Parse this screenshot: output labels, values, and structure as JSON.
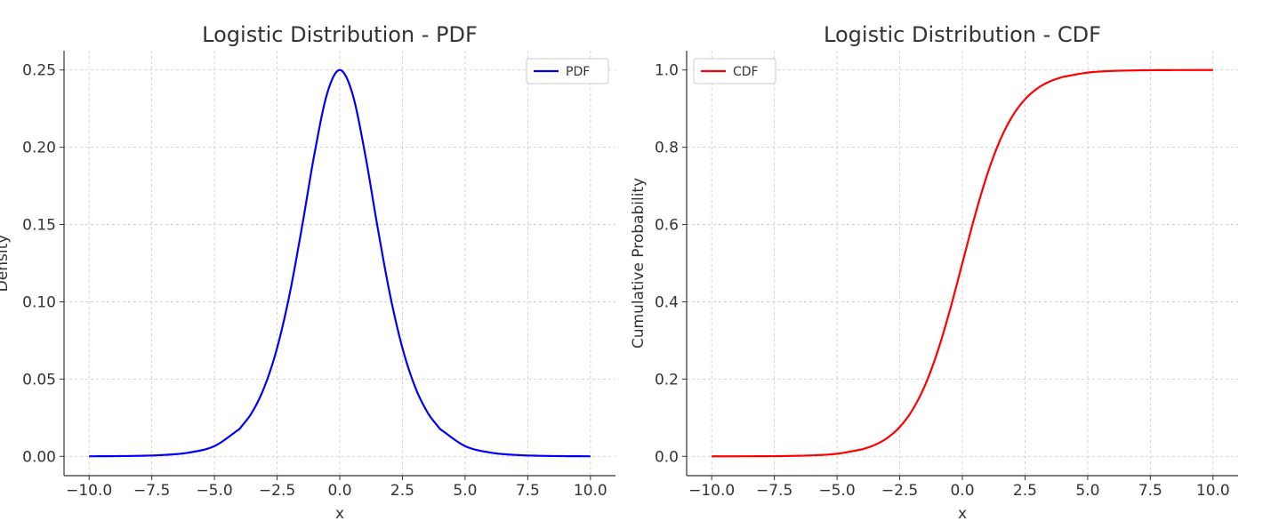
{
  "chart_data": [
    {
      "type": "line",
      "title": "Logistic Distribution - PDF",
      "xlabel": "x",
      "ylabel": "Density",
      "xlim": [
        -11.0,
        11.0
      ],
      "ylim": [
        -0.0125,
        0.2625
      ],
      "grid": true,
      "legend_position": "top-right",
      "x_ticks": [
        -10.0,
        -7.5,
        -5.0,
        -2.5,
        0.0,
        2.5,
        5.0,
        7.5,
        10.0
      ],
      "x_tick_labels": [
        "−10.0",
        "−7.5",
        "−5.0",
        "−2.5",
        "0.0",
        "2.5",
        "5.0",
        "7.5",
        "10.0"
      ],
      "y_ticks": [
        0.0,
        0.05,
        0.1,
        0.15,
        0.2,
        0.25
      ],
      "y_tick_labels": [
        "0.00",
        "0.05",
        "0.10",
        "0.15",
        "0.20",
        "0.25"
      ],
      "series": [
        {
          "name": "PDF",
          "color": "#0000ff",
          "x": [
            -10,
            -9,
            -8,
            -7,
            -6,
            -5,
            -4,
            -3.5,
            -3,
            -2.5,
            -2,
            -1.5,
            -1,
            -0.5,
            0,
            0.5,
            1,
            1.5,
            2,
            2.5,
            3,
            3.5,
            4,
            5,
            6,
            7,
            8,
            9,
            10
          ],
          "y": [
            4.54e-05,
            0.0001234,
            0.0003353,
            0.0009102,
            0.002467,
            0.006648,
            0.017663,
            0.028453,
            0.045177,
            0.070104,
            0.104994,
            0.149146,
            0.196612,
            0.235004,
            0.25,
            0.235004,
            0.196612,
            0.149146,
            0.104994,
            0.070104,
            0.045177,
            0.028453,
            0.017663,
            0.006648,
            0.002467,
            0.0009102,
            0.0003353,
            0.0001234,
            4.54e-05
          ]
        }
      ]
    },
    {
      "type": "line",
      "title": "Logistic Distribution - CDF",
      "xlabel": "x",
      "ylabel": "Cumulative Probability",
      "xlim": [
        -11.0,
        11.0
      ],
      "ylim": [
        -0.05,
        1.05
      ],
      "grid": true,
      "legend_position": "top-left",
      "x_ticks": [
        -10.0,
        -7.5,
        -5.0,
        -2.5,
        0.0,
        2.5,
        5.0,
        7.5,
        10.0
      ],
      "x_tick_labels": [
        "−10.0",
        "−7.5",
        "−5.0",
        "−2.5",
        "0.0",
        "2.5",
        "5.0",
        "7.5",
        "10.0"
      ],
      "y_ticks": [
        0.0,
        0.2,
        0.4,
        0.6,
        0.8,
        1.0
      ],
      "y_tick_labels": [
        "0.0",
        "0.2",
        "0.4",
        "0.6",
        "0.8",
        "1.0"
      ],
      "series": [
        {
          "name": "CDF",
          "color": "#ff0000",
          "x": [
            -10,
            -9,
            -8,
            -7,
            -6,
            -5,
            -4,
            -3.5,
            -3,
            -2.5,
            -2,
            -1.5,
            -1,
            -0.5,
            0,
            0.5,
            1,
            1.5,
            2,
            2.5,
            3,
            3.5,
            4,
            5,
            6,
            7,
            8,
            9,
            10
          ],
          "y": [
            4.54e-05,
            0.0001234,
            0.0003354,
            0.0009111,
            0.002473,
            0.006693,
            0.017986,
            0.029312,
            0.047426,
            0.075858,
            0.119203,
            0.182426,
            0.268941,
            0.377541,
            0.5,
            0.622459,
            0.731059,
            0.817574,
            0.880797,
            0.924142,
            0.952574,
            0.970688,
            0.982014,
            0.993307,
            0.997527,
            0.999089,
            0.999665,
            0.999877,
            0.999955
          ]
        }
      ]
    }
  ]
}
